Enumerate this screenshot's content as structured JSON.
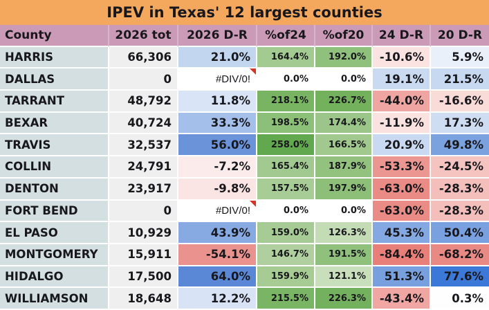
{
  "title": "IPEV in Texas' 12 largest counties",
  "colors": {
    "title_bg": "#f4a85e",
    "header_bg": "#cb9ab6",
    "county_col_bg": "#d3dfe1",
    "total_col_bg": "#efefef",
    "grid_line": "#ffffff",
    "error_indicator": "#d63425",
    "text": "#17171c"
  },
  "table": {
    "columns": [
      "County",
      "2026 tot",
      "2026 D-R",
      "%of24",
      "%of20",
      "24 D-R",
      "20 D-R"
    ],
    "rows": [
      {
        "cells": [
          {
            "text": "HARRIS",
            "bg": "#d3dfe1"
          },
          {
            "text": "66,306",
            "bg": "#efefef"
          },
          {
            "text": "21.0%",
            "bg": "#c3d6f0"
          },
          {
            "text": "164.4%",
            "bg": "#a3ca90"
          },
          {
            "text": "192.0%",
            "bg": "#90c17c"
          },
          {
            "text": "-10.6%",
            "bg": "#fbe3e1"
          },
          {
            "text": "5.9%",
            "bg": "#eaf0f9"
          }
        ]
      },
      {
        "cells": [
          {
            "text": "DALLAS",
            "bg": "#d3dfe1"
          },
          {
            "text": "0",
            "bg": "#efefef"
          },
          {
            "text": "#DIV/0!",
            "bg": "#ffffff",
            "error": true
          },
          {
            "text": "0.0%",
            "bg": "#ffffff"
          },
          {
            "text": "0.0%",
            "bg": "#ffffff"
          },
          {
            "text": "19.1%",
            "bg": "#cadaf1"
          },
          {
            "text": "21.5%",
            "bg": "#c7d8f1"
          }
        ]
      },
      {
        "cells": [
          {
            "text": "TARRANT",
            "bg": "#d3dfe1"
          },
          {
            "text": "48,792",
            "bg": "#efefef"
          },
          {
            "text": "11.8%",
            "bg": "#d9e4f6"
          },
          {
            "text": "218.1%",
            "bg": "#79b463"
          },
          {
            "text": "226.7%",
            "bg": "#74b15d"
          },
          {
            "text": "-44.0%",
            "bg": "#efa5a1"
          },
          {
            "text": "-16.6%",
            "bg": "#f9dbd8"
          }
        ]
      },
      {
        "cells": [
          {
            "text": "BEXAR",
            "bg": "#d3dfe1"
          },
          {
            "text": "40,724",
            "bg": "#efefef"
          },
          {
            "text": "33.3%",
            "bg": "#a4c0ea"
          },
          {
            "text": "198.5%",
            "bg": "#8cbf77"
          },
          {
            "text": "174.4%",
            "bg": "#9cc689"
          },
          {
            "text": "-11.9%",
            "bg": "#fae2e0"
          },
          {
            "text": "17.3%",
            "bg": "#cfddf3"
          }
        ]
      },
      {
        "cells": [
          {
            "text": "TRAVIS",
            "bg": "#d3dfe1"
          },
          {
            "text": "32,537",
            "bg": "#efefef"
          },
          {
            "text": "56.0%",
            "bg": "#6b93da"
          },
          {
            "text": "258.0%",
            "bg": "#61a84f"
          },
          {
            "text": "166.5%",
            "bg": "#a1c98e"
          },
          {
            "text": "20.9%",
            "bg": "#c8d9f1"
          },
          {
            "text": "49.8%",
            "bg": "#7aa2df"
          }
        ]
      },
      {
        "cells": [
          {
            "text": "COLLIN",
            "bg": "#d3dfe1"
          },
          {
            "text": "24,791",
            "bg": "#efefef"
          },
          {
            "text": "-7.2%",
            "bg": "#fbeceb"
          },
          {
            "text": "165.4%",
            "bg": "#a2c98f"
          },
          {
            "text": "187.9%",
            "bg": "#93c27f"
          },
          {
            "text": "-53.3%",
            "bg": "#ec9691"
          },
          {
            "text": "-24.5%",
            "bg": "#f5c4c1"
          }
        ]
      },
      {
        "cells": [
          {
            "text": "DENTON",
            "bg": "#d3dfe1"
          },
          {
            "text": "23,917",
            "bg": "#efefef"
          },
          {
            "text": "-9.8%",
            "bg": "#fae5e4"
          },
          {
            "text": "157.5%",
            "bg": "#a8cc96"
          },
          {
            "text": "197.9%",
            "bg": "#8dbf78"
          },
          {
            "text": "-63.0%",
            "bg": "#ea8b86"
          },
          {
            "text": "-28.3%",
            "bg": "#f4bebb"
          }
        ]
      },
      {
        "cells": [
          {
            "text": "FORT BEND",
            "bg": "#d3dfe1"
          },
          {
            "text": "0",
            "bg": "#efefef"
          },
          {
            "text": "#DIV/0!",
            "bg": "#ffffff",
            "error": true
          },
          {
            "text": "0.0%",
            "bg": "#ffffff"
          },
          {
            "text": "0.0%",
            "bg": "#ffffff"
          },
          {
            "text": "-63.0%",
            "bg": "#ea8b86"
          },
          {
            "text": "-28.3%",
            "bg": "#f4bebb"
          }
        ]
      },
      {
        "cells": [
          {
            "text": "EL PASO",
            "bg": "#d3dfe1"
          },
          {
            "text": "10,929",
            "bg": "#efefef"
          },
          {
            "text": "43.9%",
            "bg": "#87aae2"
          },
          {
            "text": "159.0%",
            "bg": "#a7cb94"
          },
          {
            "text": "126.3%",
            "bg": "#c4dcb6"
          },
          {
            "text": "45.3%",
            "bg": "#84a8e1"
          },
          {
            "text": "50.4%",
            "bg": "#79a1df"
          }
        ]
      },
      {
        "cells": [
          {
            "text": "MONTGOMERY",
            "bg": "#d3dfe1"
          },
          {
            "text": "15,911",
            "bg": "#efefef"
          },
          {
            "text": "-54.1%",
            "bg": "#e9928e"
          },
          {
            "text": "146.7%",
            "bg": "#afd09e"
          },
          {
            "text": "191.5%",
            "bg": "#90c17c"
          },
          {
            "text": "-84.4%",
            "bg": "#e87f79"
          },
          {
            "text": "-68.2%",
            "bg": "#e98984"
          }
        ]
      },
      {
        "cells": [
          {
            "text": "HIDALGO",
            "bg": "#d3dfe1"
          },
          {
            "text": "17,500",
            "bg": "#efefef"
          },
          {
            "text": "64.0%",
            "bg": "#5b88d6"
          },
          {
            "text": "159.9%",
            "bg": "#a6cb93"
          },
          {
            "text": "121.1%",
            "bg": "#c9dfbc"
          },
          {
            "text": "51.3%",
            "bg": "#78a0de"
          },
          {
            "text": "77.6%",
            "bg": "#3c78d8"
          }
        ]
      },
      {
        "cells": [
          {
            "text": "WILLIAMSON",
            "bg": "#d3dfe1"
          },
          {
            "text": "18,648",
            "bg": "#efefef"
          },
          {
            "text": "12.2%",
            "bg": "#d8e3f5"
          },
          {
            "text": "215.5%",
            "bg": "#7ab465"
          },
          {
            "text": "226.3%",
            "bg": "#74b15e"
          },
          {
            "text": "-43.4%",
            "bg": "#f0a6a2"
          },
          {
            "text": "0.3%",
            "bg": "#fefefe"
          }
        ]
      }
    ]
  }
}
